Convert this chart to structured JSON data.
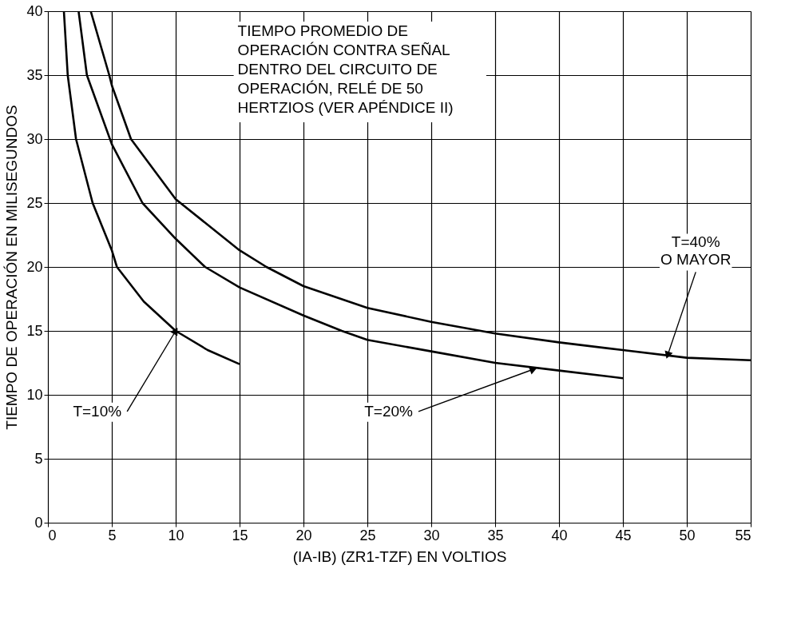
{
  "chart_data": {
    "type": "line",
    "xlabel": "(IA-IB) (ZR1-TZF) EN VOLTIOS",
    "ylabel": "TIEMPO DE OPERACIÓN EN MILISEGUNDOS",
    "xlim": [
      0,
      55
    ],
    "xticks": [
      0,
      5,
      10,
      15,
      20,
      25,
      30,
      35,
      40,
      45,
      50,
      55
    ],
    "ylim": [
      0,
      40
    ],
    "yticks": [
      0,
      5,
      10,
      15,
      20,
      25,
      30,
      35,
      40
    ],
    "grid": true,
    "legend": false,
    "marker": "none",
    "line_style": "solid",
    "series": [
      {
        "color": "#000000",
        "x": [
          1.25,
          1.55,
          2.2,
          3.5,
          5,
          5.4,
          7.5,
          10,
          12.5,
          15
        ],
        "values": [
          40,
          35,
          30,
          25,
          21.3,
          20,
          17.3,
          15,
          13.5,
          12.4
        ]
      },
      {
        "color": "#000000",
        "x": [
          2.4,
          3.05,
          5,
          7.4,
          10,
          12.3,
          15,
          20,
          23,
          25,
          30,
          35,
          40,
          45
        ],
        "values": [
          40,
          35,
          29.6,
          25,
          22.2,
          20,
          18.4,
          16.2,
          15,
          14.3,
          13.4,
          12.5,
          11.9,
          11.3
        ]
      },
      {
        "color": "#000000",
        "x": [
          3.35,
          4.8,
          5,
          6.5,
          10,
          15,
          17.1,
          20,
          25,
          30,
          35,
          40,
          45,
          50,
          55
        ],
        "values": [
          40,
          35,
          34.2,
          30,
          25.3,
          21.3,
          20,
          18.5,
          16.8,
          15.7,
          14.8,
          14.1,
          13.5,
          12.9,
          12.7
        ]
      }
    ],
    "annotations": [
      "TIEMPO PROMEDIO DE\nOPERACIÓN CONTRA SEÑAL\nDENTRO DEL CIRCUITO DE\nOPERACIÓN, RELÉ DE 50\nHERTZIOS (VER APÉNDICE II)",
      {
        "text": "T=10%",
        "x": 10,
        "y": 15
      },
      {
        "text": "T=20%",
        "x": 38,
        "y": 12
      },
      {
        "text": "T=40%\nO MAYOR",
        "x": 48.5,
        "y": 13.1
      }
    ]
  }
}
